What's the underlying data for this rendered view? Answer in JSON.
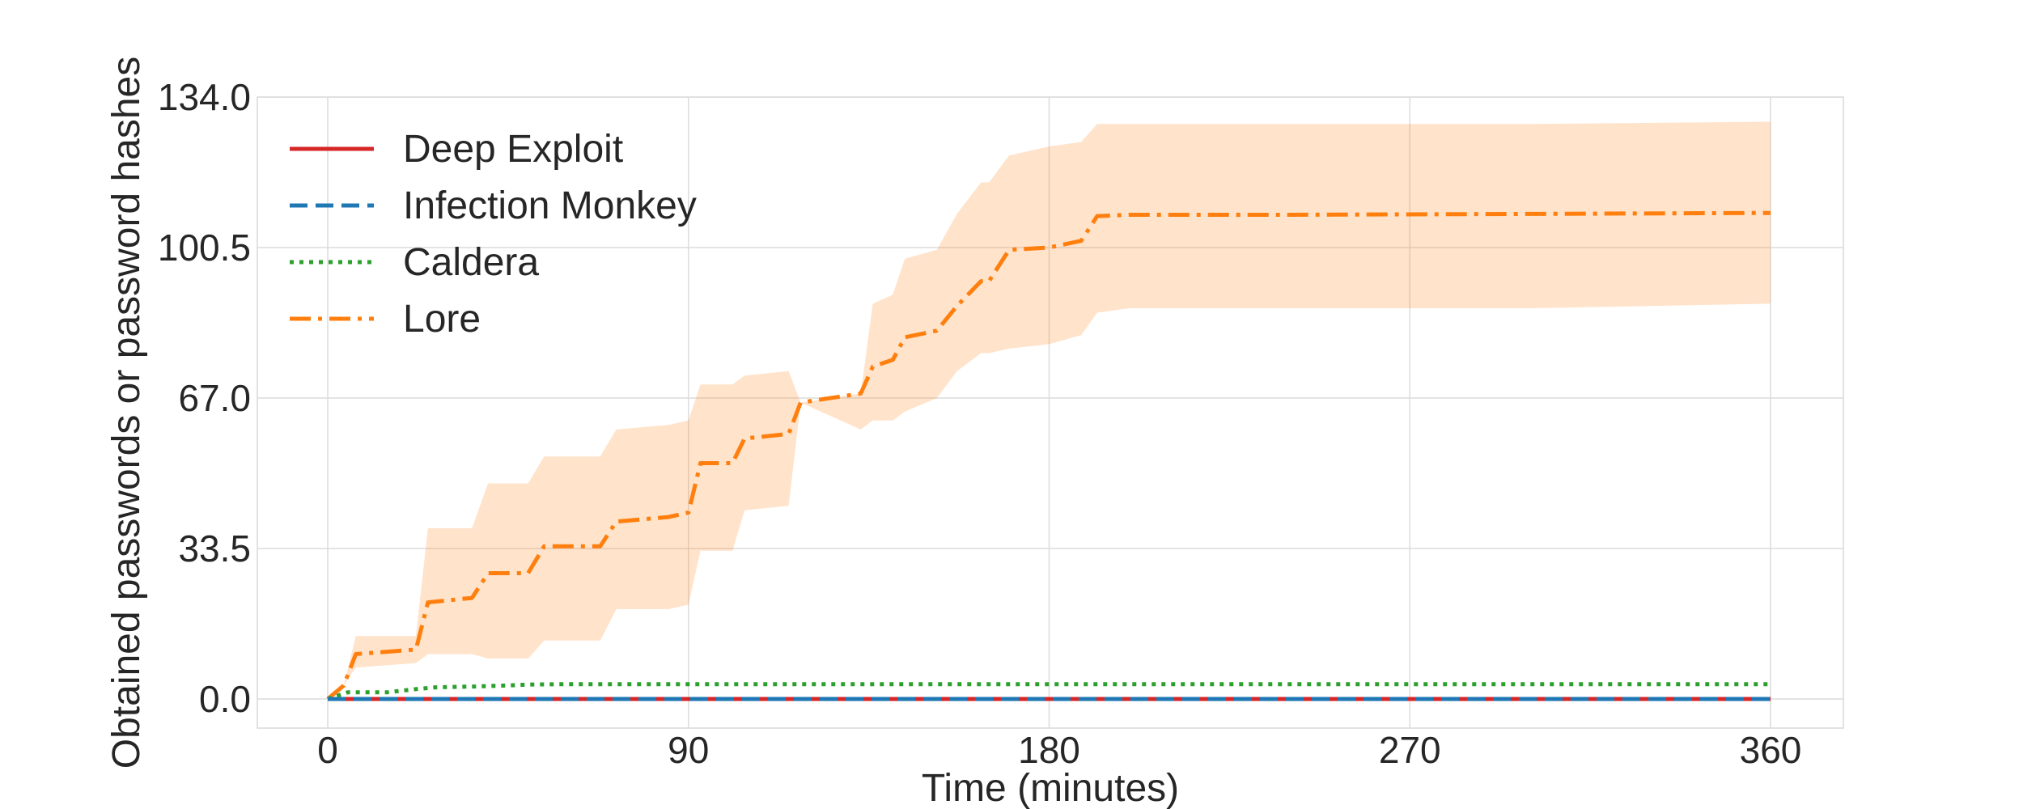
{
  "chart_data": {
    "type": "line",
    "xlabel": "Time (minutes)",
    "ylabel": "Obtained passwords or password hashes",
    "xlim": [
      -18,
      378
    ],
    "ylim": [
      -6,
      134
    ],
    "xticks": [
      0,
      90,
      180,
      270,
      360
    ],
    "xtick_labels": [
      "0",
      "90",
      "180",
      "270",
      "360"
    ],
    "yticks": [
      0,
      33.5,
      67,
      100.5,
      134
    ],
    "ytick_labels": [
      "0.0",
      "33.5",
      "67.0",
      "100.5",
      "134.0"
    ],
    "grid": true,
    "legend": {
      "position": "top-left"
    },
    "series": [
      {
        "name": "Deep Exploit",
        "color": "#d62728",
        "style": "solid",
        "x": [
          0,
          360
        ],
        "y": [
          0,
          0
        ]
      },
      {
        "name": "Infection Monkey",
        "color": "#1f77b4",
        "style": "dashed",
        "x": [
          0,
          360
        ],
        "y": [
          0,
          0
        ]
      },
      {
        "name": "Caldera",
        "color": "#2ca02c",
        "style": "dotted",
        "x": [
          0,
          5,
          15,
          22,
          27,
          37,
          45,
          50,
          60,
          360
        ],
        "y": [
          0,
          1.5,
          1.5,
          2.2,
          2.6,
          2.8,
          3.0,
          3.2,
          3.3,
          3.3
        ]
      },
      {
        "name": "Lore",
        "color": "#ff7f0e",
        "style": "dashdot",
        "x": [
          0,
          4,
          7,
          22,
          25,
          36,
          40,
          50,
          54,
          68,
          72,
          85,
          90,
          93,
          101,
          104,
          115,
          118,
          133,
          136,
          141,
          144,
          152,
          157,
          163,
          165,
          170,
          180,
          188,
          192,
          200,
          240,
          300,
          360
        ],
        "y": [
          0,
          3,
          10,
          11,
          21.5,
          22.5,
          28,
          28,
          34,
          34,
          39.5,
          40.5,
          41.5,
          52.5,
          52.5,
          58,
          59,
          66,
          68,
          74,
          75.5,
          80.5,
          82,
          87.5,
          93,
          93,
          100,
          100.5,
          102,
          107.5,
          107.8,
          107.8,
          108,
          108.2
        ],
        "band_upper": [
          0,
          3,
          14,
          14,
          38,
          38,
          48,
          48,
          54,
          54,
          60,
          61,
          62,
          70,
          70,
          72,
          73,
          66,
          68,
          88,
          90,
          98,
          100,
          108,
          115,
          115,
          121,
          123,
          124,
          128,
          128,
          128,
          128,
          128.5
        ],
        "band_lower": [
          0,
          3,
          7,
          8,
          10,
          10,
          9,
          9,
          13,
          13,
          20,
          20,
          21,
          33,
          33,
          42,
          43,
          66,
          60,
          62,
          62,
          64,
          67,
          73,
          77,
          77,
          78,
          79,
          81,
          86,
          87,
          87,
          87,
          88
        ]
      }
    ]
  }
}
